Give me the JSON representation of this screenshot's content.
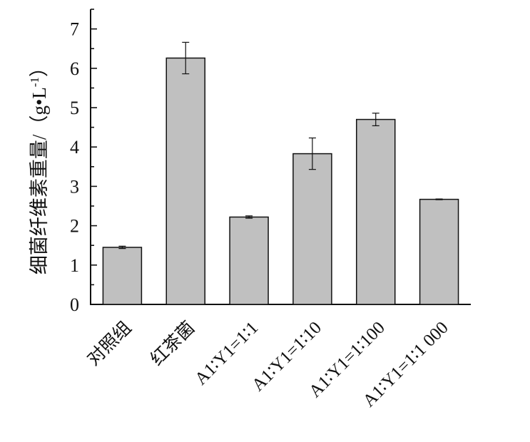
{
  "chart_data": {
    "type": "bar",
    "ylabel": "细菌纤维素重量/（g•L",
    "ylabel_sup": "-1",
    "ylabel_close": "）",
    "categories": [
      "对照组",
      "红茶菌",
      "A1∶Y1=1∶1",
      "A1∶Y1=1∶10",
      "A1∶Y1=1∶100",
      "A1∶Y1=1∶1 000"
    ],
    "values": [
      1.45,
      6.26,
      2.22,
      3.83,
      4.7,
      2.67
    ],
    "errors": [
      0.03,
      0.4,
      0.03,
      0.4,
      0.16,
      0.01
    ],
    "ylim": [
      0,
      7.5
    ],
    "yticks": [
      0,
      1,
      2,
      3,
      4,
      5,
      6,
      7
    ],
    "ytick_labels": [
      "0",
      "1",
      "2",
      "3",
      "4",
      "5",
      "6",
      "7"
    ],
    "grid": false,
    "bar_color": "#c0c0c0",
    "edge_color": "#111111"
  }
}
